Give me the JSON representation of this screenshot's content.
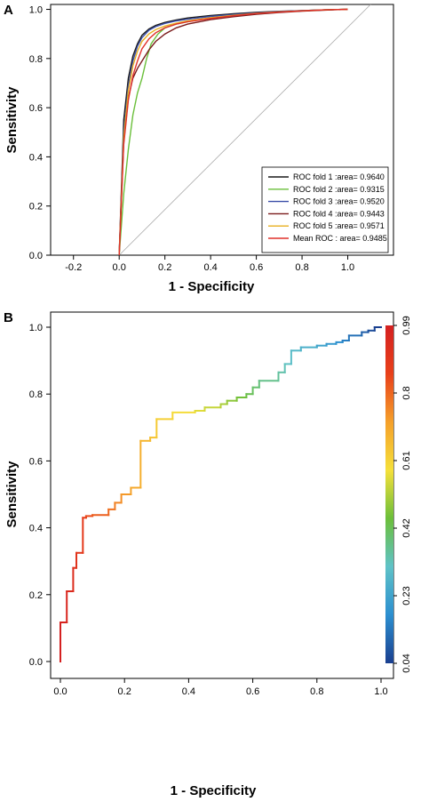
{
  "panels": {
    "a_letter": "A",
    "b_letter": "B"
  },
  "chart_data": [
    {
      "panel": "A",
      "type": "line",
      "xlabel": "1 - Specificity",
      "ylabel": "Sensitivity",
      "xlim": [
        -0.3,
        1.2
      ],
      "ylim": [
        0,
        1.02
      ],
      "xticks": [
        -0.2,
        0.0,
        0.2,
        0.4,
        0.6,
        0.8,
        1.0
      ],
      "yticks": [
        0.0,
        0.2,
        0.4,
        0.6,
        0.8,
        1.0
      ],
      "diagonal_reference": true,
      "legend_position": "bottom-right",
      "series": [
        {
          "name": "ROC fold  1 :area= 0.9640",
          "color": "#1a1a1a",
          "x": [
            0,
            0.02,
            0.04,
            0.06,
            0.08,
            0.1,
            0.13,
            0.16,
            0.2,
            0.25,
            0.3,
            0.4,
            0.5,
            0.6,
            0.7,
            0.8,
            0.9,
            1.0
          ],
          "y": [
            0,
            0.55,
            0.72,
            0.81,
            0.86,
            0.895,
            0.92,
            0.935,
            0.947,
            0.957,
            0.965,
            0.975,
            0.982,
            0.988,
            0.992,
            0.995,
            0.998,
            1.0
          ]
        },
        {
          "name": "ROC fold  2 :area= 0.9315",
          "color": "#6abf3a",
          "x": [
            0,
            0.02,
            0.04,
            0.06,
            0.08,
            0.1,
            0.12,
            0.14,
            0.17,
            0.2,
            0.25,
            0.3,
            0.4,
            0.5,
            0.6,
            0.7,
            0.8,
            0.9,
            1.0
          ],
          "y": [
            0,
            0.25,
            0.43,
            0.57,
            0.66,
            0.72,
            0.8,
            0.86,
            0.9,
            0.925,
            0.94,
            0.95,
            0.965,
            0.975,
            0.983,
            0.99,
            0.995,
            0.998,
            1.0
          ]
        },
        {
          "name": "ROC fold  3 :area= 0.9520",
          "color": "#3b4fa8",
          "x": [
            0,
            0.02,
            0.04,
            0.06,
            0.08,
            0.1,
            0.13,
            0.16,
            0.2,
            0.25,
            0.3,
            0.4,
            0.5,
            0.6,
            0.7,
            0.8,
            0.9,
            1.0
          ],
          "y": [
            0,
            0.5,
            0.69,
            0.79,
            0.85,
            0.885,
            0.915,
            0.93,
            0.943,
            0.953,
            0.96,
            0.971,
            0.979,
            0.986,
            0.991,
            0.995,
            0.998,
            1.0
          ]
        },
        {
          "name": "ROC fold  4 :area= 0.9443",
          "color": "#7a1a1a",
          "x": [
            0,
            0.02,
            0.04,
            0.06,
            0.08,
            0.1,
            0.13,
            0.16,
            0.2,
            0.25,
            0.3,
            0.4,
            0.5,
            0.6,
            0.7,
            0.8,
            0.9,
            1.0
          ],
          "y": [
            0,
            0.46,
            0.64,
            0.72,
            0.76,
            0.79,
            0.835,
            0.87,
            0.9,
            0.925,
            0.94,
            0.958,
            0.97,
            0.98,
            0.987,
            0.993,
            0.997,
            1.0
          ]
        },
        {
          "name": "ROC fold  5 :area= 0.9571",
          "color": "#e8b020",
          "x": [
            0,
            0.02,
            0.04,
            0.06,
            0.08,
            0.1,
            0.13,
            0.16,
            0.2,
            0.25,
            0.3,
            0.4,
            0.5,
            0.6,
            0.7,
            0.8,
            0.9,
            1.0
          ],
          "y": [
            0,
            0.48,
            0.67,
            0.77,
            0.83,
            0.87,
            0.9,
            0.918,
            0.932,
            0.944,
            0.953,
            0.966,
            0.976,
            0.984,
            0.99,
            0.994,
            0.998,
            1.0
          ]
        },
        {
          "name": "Mean ROC : area= 0.9485",
          "color": "#e0302a",
          "x": [
            0,
            0.02,
            0.04,
            0.06,
            0.08,
            0.1,
            0.13,
            0.16,
            0.2,
            0.25,
            0.3,
            0.4,
            0.5,
            0.6,
            0.7,
            0.8,
            0.9,
            1.0
          ],
          "y": [
            0,
            0.45,
            0.63,
            0.73,
            0.79,
            0.84,
            0.88,
            0.905,
            0.925,
            0.94,
            0.95,
            0.963,
            0.974,
            0.983,
            0.989,
            0.994,
            0.998,
            1.0
          ]
        }
      ]
    },
    {
      "panel": "B",
      "type": "line",
      "xlabel": "1 - Specificity",
      "ylabel": "Sensitivity",
      "xlim": [
        -0.07,
        1.07
      ],
      "ylim": [
        -0.05,
        1.05
      ],
      "xticks": [
        0.0,
        0.2,
        0.4,
        0.6,
        0.8,
        1.0
      ],
      "yticks": [
        0.0,
        0.2,
        0.4,
        0.6,
        0.8,
        1.0
      ],
      "step_curve": {
        "x": [
          0,
          0,
          0.02,
          0.02,
          0.04,
          0.04,
          0.05,
          0.05,
          0.07,
          0.07,
          0.08,
          0.08,
          0.1,
          0.1,
          0.15,
          0.15,
          0.17,
          0.17,
          0.19,
          0.19,
          0.22,
          0.22,
          0.25,
          0.25,
          0.28,
          0.28,
          0.3,
          0.3,
          0.35,
          0.35,
          0.42,
          0.42,
          0.45,
          0.45,
          0.5,
          0.5,
          0.52,
          0.52,
          0.55,
          0.55,
          0.58,
          0.58,
          0.6,
          0.6,
          0.62,
          0.62,
          0.68,
          0.68,
          0.7,
          0.7,
          0.72,
          0.72,
          0.75,
          0.75,
          0.8,
          0.8,
          0.83,
          0.83,
          0.86,
          0.86,
          0.88,
          0.88,
          0.9,
          0.9,
          0.94,
          0.94,
          0.96,
          0.96,
          0.98,
          0.98,
          1.0
        ],
        "y": [
          0,
          0.117,
          0.117,
          0.21,
          0.21,
          0.28,
          0.28,
          0.325,
          0.325,
          0.43,
          0.43,
          0.435,
          0.435,
          0.438,
          0.438,
          0.455,
          0.455,
          0.475,
          0.475,
          0.5,
          0.5,
          0.52,
          0.52,
          0.66,
          0.66,
          0.67,
          0.67,
          0.725,
          0.725,
          0.745,
          0.745,
          0.75,
          0.75,
          0.76,
          0.76,
          0.77,
          0.77,
          0.78,
          0.78,
          0.79,
          0.79,
          0.8,
          0.8,
          0.82,
          0.82,
          0.84,
          0.84,
          0.865,
          0.865,
          0.89,
          0.89,
          0.93,
          0.93,
          0.94,
          0.94,
          0.945,
          0.945,
          0.95,
          0.95,
          0.955,
          0.955,
          0.96,
          0.96,
          0.975,
          0.975,
          0.985,
          0.985,
          0.99,
          0.99,
          1.0,
          1.0
        ]
      },
      "colorbar": {
        "ticks": [
          "0.04",
          "0.23",
          "0.42",
          "0.61",
          "0.8",
          "0.99"
        ],
        "colors": [
          "#1a3f8f",
          "#2c8fd0",
          "#5fc2c7",
          "#6cbf3a",
          "#f5e03a",
          "#f5a02a",
          "#e8401a",
          "#d42020"
        ]
      }
    }
  ]
}
